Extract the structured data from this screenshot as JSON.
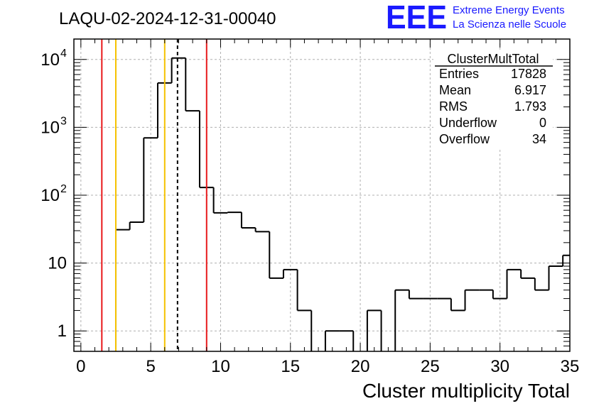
{
  "header": {
    "title": "LAQU-02-2024-12-31-00040",
    "logo_text": "EEE",
    "logo_line1": "Extreme Energy Events",
    "logo_line2": "La Scienza nelle Scuole"
  },
  "stats": {
    "name": "ClusterMultTotal",
    "rows": [
      {
        "label": "Entries",
        "value": "17828"
      },
      {
        "label": "Mean",
        "value": "6.917"
      },
      {
        "label": "RMS",
        "value": "1.793"
      },
      {
        "label": "Underflow",
        "value": "0"
      },
      {
        "label": "Overflow",
        "value": "34"
      }
    ]
  },
  "colors": {
    "logo": "#1a1aff",
    "red_line": "#e8191b",
    "yellow_line": "#f5c200",
    "grid": "#b0b0b0"
  },
  "chart_data": {
    "type": "histogram",
    "xlabel": "Cluster multiplicity Total",
    "ylabel": "",
    "xlim": [
      -0.5,
      35.0
    ],
    "ylim": [
      0.5,
      20000
    ],
    "log_y": true,
    "grid": true,
    "bin_width": 1,
    "first_bin_low": -0.5,
    "counts": [
      0,
      0,
      0,
      31,
      40,
      700,
      4500,
      10500,
      1750,
      130,
      55,
      56,
      33,
      29,
      6,
      8,
      2,
      0,
      1,
      1,
      0,
      2,
      0,
      4,
      3,
      3,
      3,
      2,
      4,
      4,
      3,
      8,
      6,
      4,
      9,
      13
    ],
    "x_ticks": [
      0,
      5,
      10,
      15,
      20,
      25,
      30,
      35
    ],
    "y_ticks": [
      {
        "value": 1,
        "label": "1"
      },
      {
        "value": 10,
        "label": "10"
      },
      {
        "value": 100,
        "label": "10",
        "exp": "2"
      },
      {
        "value": 1000,
        "label": "10",
        "exp": "3"
      },
      {
        "value": 10000,
        "label": "10",
        "exp": "4"
      }
    ],
    "markers": [
      {
        "x": 1.5,
        "color": "red"
      },
      {
        "x": 2.5,
        "color": "yellow"
      },
      {
        "x": 6.0,
        "color": "yellow"
      },
      {
        "x": 6.917,
        "color": "black-dashed"
      },
      {
        "x": 9.0,
        "color": "red"
      }
    ]
  }
}
